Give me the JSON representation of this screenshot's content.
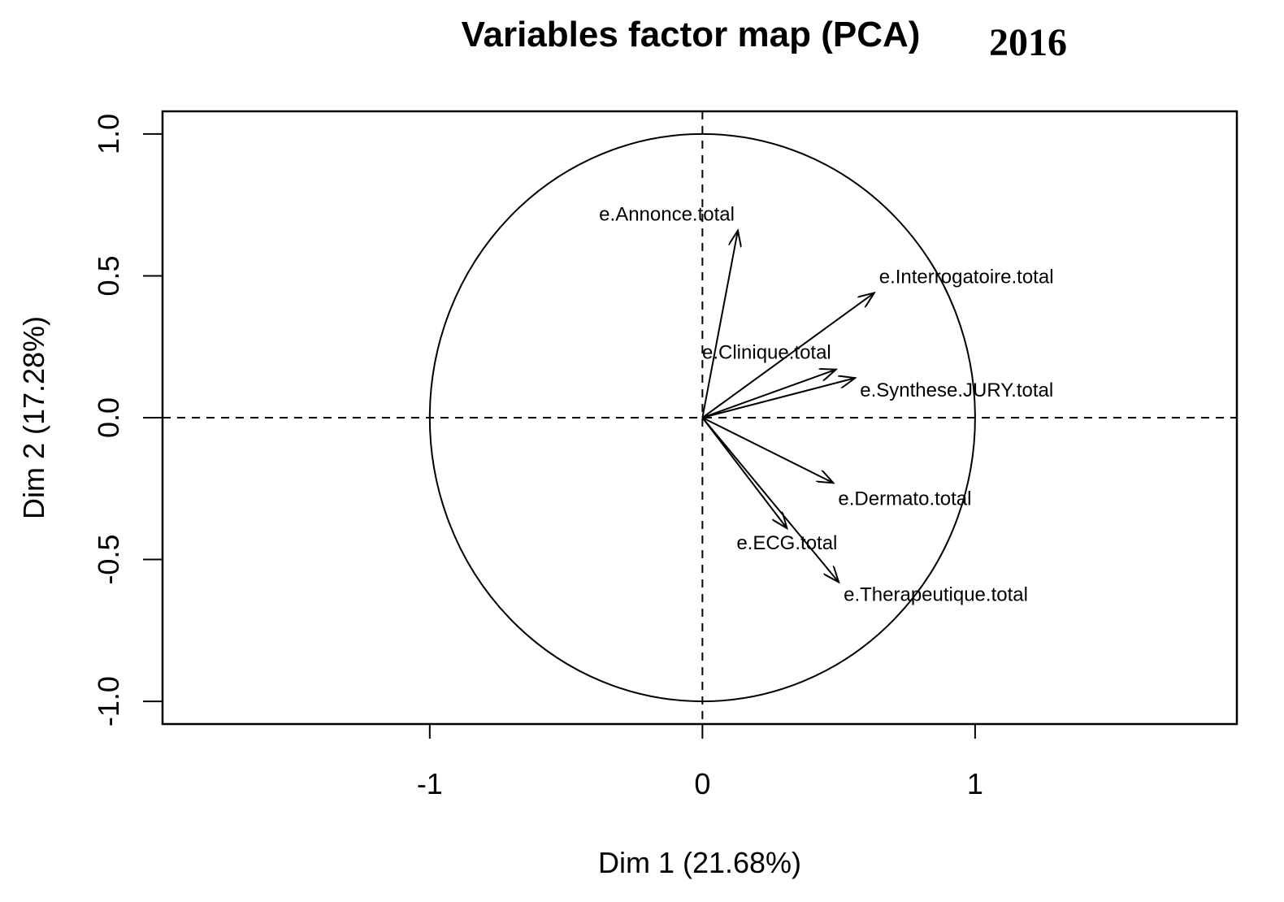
{
  "chart_data": {
    "type": "scatter",
    "subtype": "pca-variables-factor-map",
    "title": "Variables factor map (PCA)",
    "annotation": "2016",
    "xlabel": "Dim 1 (21.68%)",
    "ylabel": "Dim 2 (17.28%)",
    "xlim": [
      -1.98,
      1.96
    ],
    "ylim": [
      -1.08,
      1.08
    ],
    "x_ticks": [
      -1,
      0,
      1
    ],
    "x_tick_labels": [
      "-1",
      "0",
      "1"
    ],
    "y_ticks": [
      -1.0,
      -0.5,
      0.0,
      0.5,
      1.0
    ],
    "y_tick_labels": [
      "-1.0",
      "-0.5",
      "0.0",
      "0.5",
      "1.0"
    ],
    "unit_circle": true,
    "reference_lines": [
      "x=0 dashed",
      "y=0 dashed"
    ],
    "grid": false,
    "legend": "none",
    "series": [
      {
        "name": "e.Annonce.total",
        "x": 0.13,
        "y": 0.66
      },
      {
        "name": "e.Interrogatoire.total",
        "x": 0.63,
        "y": 0.44
      },
      {
        "name": "e.Clinique.total",
        "x": 0.49,
        "y": 0.17
      },
      {
        "name": "e.Synthese.JURY.total",
        "x": 0.56,
        "y": 0.14
      },
      {
        "name": "e.Dermato.total",
        "x": 0.48,
        "y": -0.23
      },
      {
        "name": "e.ECG.total",
        "x": 0.31,
        "y": -0.39
      },
      {
        "name": "e.Therapeutique.total",
        "x": 0.5,
        "y": -0.58
      }
    ]
  }
}
